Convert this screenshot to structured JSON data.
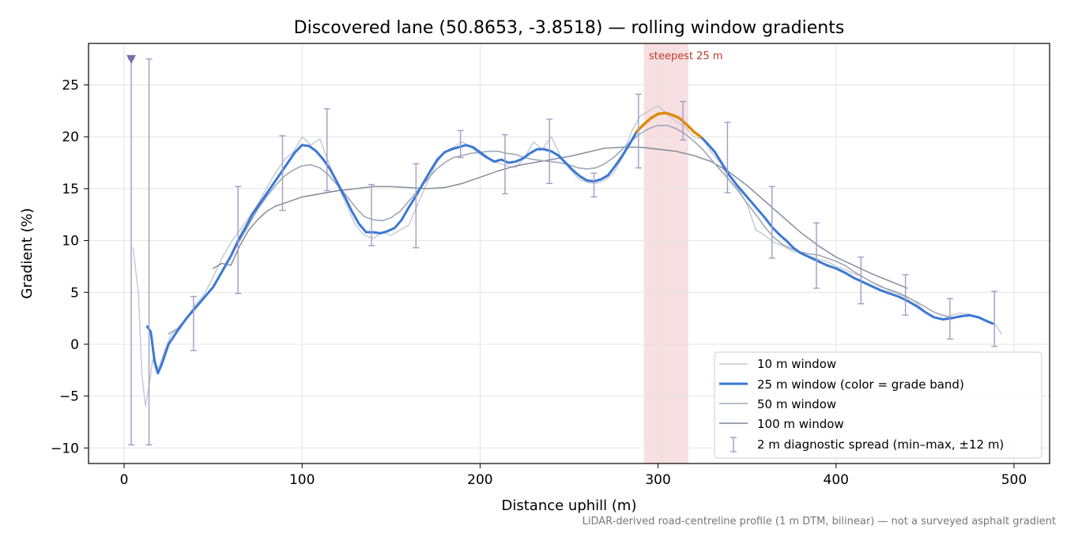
{
  "chart_data": {
    "type": "line",
    "title": "Discovered lane (50.8653, -3.8518) — rolling window gradients",
    "xlabel": "Distance uphill (m)",
    "ylabel": "Gradient (%)",
    "xlim": [
      -20,
      520
    ],
    "ylim": [
      -11.5,
      29
    ],
    "xticks": [
      0,
      100,
      200,
      300,
      400,
      500
    ],
    "yticks": [
      -10,
      -5,
      0,
      5,
      10,
      15,
      20,
      25
    ],
    "grid": true,
    "legend_position": "lower-right",
    "footnote": "LiDAR-derived road-centreline profile (1 m DTM, bilinear) — not a surveyed asphalt gradient",
    "highlight": {
      "label": "steepest 25 m",
      "x_start": 292,
      "x_end": 317,
      "color": "#f2c4c9"
    },
    "marker": {
      "x": 4,
      "y": 27.5,
      "shape": "triangle-down",
      "color": "#7b6ba8"
    },
    "series": [
      {
        "name": "10 m window",
        "color": "#c3c8d2",
        "x": [
          5,
          8,
          10,
          12,
          14,
          16,
          18,
          20,
          23,
          26,
          30,
          35,
          40,
          45,
          50,
          55,
          60,
          65,
          70,
          75,
          80,
          85,
          90,
          95,
          100,
          105,
          110,
          115,
          120,
          125,
          130,
          135,
          140,
          145,
          150,
          155,
          160,
          165,
          170,
          175,
          180,
          185,
          190,
          195,
          200,
          205,
          210,
          215,
          220,
          225,
          230,
          235,
          240,
          245,
          250,
          255,
          260,
          265,
          270,
          275,
          280,
          285,
          290,
          295,
          300,
          305,
          310,
          315,
          320,
          325,
          330,
          335,
          340,
          345,
          350,
          355,
          360,
          365,
          370,
          375,
          380,
          385,
          390,
          395,
          400,
          405,
          410,
          415,
          420,
          425,
          430,
          435,
          440,
          445,
          450,
          455,
          460,
          465,
          470,
          475,
          480,
          485,
          490,
          493
        ],
        "y": [
          9.3,
          5.0,
          -3.0,
          -6.0,
          -4.0,
          -1.5,
          -2.5,
          -2.0,
          -0.5,
          0.8,
          1.5,
          2.5,
          3.8,
          4.8,
          6.5,
          8.3,
          9.8,
          11.0,
          12.2,
          13.5,
          15.0,
          16.5,
          17.8,
          18.5,
          20.0,
          19.2,
          19.8,
          17.5,
          15.3,
          13.4,
          11.5,
          10.5,
          10.2,
          10.8,
          10.5,
          11.0,
          11.5,
          13.5,
          15.5,
          17.3,
          18.5,
          19.0,
          19.5,
          19.0,
          18.3,
          17.8,
          17.5,
          17.2,
          17.0,
          18.0,
          19.5,
          18.8,
          20.0,
          18.2,
          17.0,
          16.0,
          15.6,
          15.5,
          15.8,
          16.5,
          18.0,
          20.5,
          22.0,
          22.5,
          23.0,
          22.2,
          21.5,
          21.0,
          20.0,
          19.8,
          18.5,
          17.5,
          15.8,
          15.0,
          13.5,
          11.0,
          10.5,
          9.8,
          9.5,
          9.0,
          8.8,
          8.5,
          8.2,
          8.0,
          7.5,
          7.2,
          6.8,
          6.5,
          6.0,
          5.5,
          5.3,
          5.0,
          4.6,
          4.0,
          3.2,
          2.6,
          2.4,
          2.8,
          3.0,
          2.9,
          2.5,
          2.3,
          1.8,
          1.0
        ]
      },
      {
        "name": "25 m window (color = grade band)",
        "color": "#3a78d4",
        "x": [
          13,
          15,
          17,
          19,
          21,
          25,
          30,
          35,
          40,
          45,
          50,
          55,
          60,
          64,
          68,
          72,
          76,
          80,
          84,
          88,
          92,
          96,
          100,
          104,
          108,
          112,
          116,
          120,
          124,
          128,
          132,
          136,
          140,
          144,
          148,
          152,
          156,
          160,
          164,
          168,
          172,
          176,
          180,
          184,
          188,
          192,
          196,
          200,
          204,
          208,
          212,
          216,
          220,
          224,
          228,
          232,
          236,
          240,
          244,
          248,
          252,
          256,
          260,
          264,
          268,
          272,
          276,
          280,
          284,
          288,
          292,
          296,
          300,
          304,
          308,
          312,
          316,
          320,
          324,
          328,
          332,
          336,
          340,
          344,
          348,
          352,
          356,
          360,
          364,
          368,
          372,
          376,
          380,
          385,
          390,
          395,
          400,
          405,
          410,
          415,
          420,
          425,
          430,
          435,
          440,
          445,
          450,
          455,
          460,
          465,
          470,
          475,
          480,
          485,
          488
        ],
        "y": [
          1.7,
          1.2,
          -1.5,
          -2.8,
          -2.0,
          0.0,
          1.3,
          2.5,
          3.5,
          4.5,
          5.5,
          7.0,
          8.5,
          10.0,
          11.2,
          12.5,
          13.5,
          14.5,
          15.5,
          16.5,
          17.5,
          18.5,
          19.2,
          19.1,
          18.6,
          17.8,
          16.8,
          15.5,
          14.2,
          12.8,
          11.6,
          10.8,
          10.8,
          10.7,
          10.9,
          11.2,
          12.0,
          13.2,
          14.3,
          15.5,
          16.7,
          17.8,
          18.5,
          18.8,
          19.0,
          19.2,
          19.0,
          18.5,
          18.0,
          17.6,
          17.8,
          17.5,
          17.6,
          17.9,
          18.4,
          18.8,
          18.8,
          18.6,
          18.2,
          17.5,
          16.8,
          16.2,
          15.8,
          15.7,
          15.9,
          16.3,
          17.2,
          18.2,
          19.3,
          20.5,
          21.2,
          21.8,
          22.2,
          22.3,
          22.1,
          21.8,
          21.2,
          20.5,
          20.0,
          19.3,
          18.5,
          17.4,
          16.3,
          15.4,
          14.6,
          13.8,
          13.0,
          12.2,
          11.3,
          10.6,
          10.0,
          9.3,
          8.8,
          8.4,
          8.0,
          7.6,
          7.3,
          6.9,
          6.4,
          6.0,
          5.6,
          5.2,
          4.9,
          4.6,
          4.2,
          3.7,
          3.1,
          2.6,
          2.4,
          2.5,
          2.7,
          2.8,
          2.6,
          2.2,
          2.0
        ]
      },
      {
        "name": "50 m window",
        "color": "#a0a8b6",
        "x": [
          25,
          30,
          35,
          40,
          45,
          50,
          55,
          60,
          65,
          70,
          75,
          80,
          85,
          90,
          95,
          100,
          105,
          110,
          115,
          120,
          125,
          130,
          135,
          140,
          145,
          150,
          155,
          160,
          165,
          170,
          175,
          180,
          185,
          190,
          195,
          200,
          205,
          210,
          215,
          220,
          225,
          230,
          235,
          240,
          245,
          250,
          255,
          260,
          265,
          270,
          275,
          280,
          285,
          290,
          295,
          300,
          305,
          310,
          315,
          320,
          325,
          330,
          335,
          340,
          345,
          350,
          355,
          360,
          365,
          370,
          375,
          380,
          385,
          390,
          395,
          400,
          405,
          410,
          415,
          420,
          425,
          430,
          435,
          440,
          445,
          450,
          455,
          460,
          465,
          470
        ],
        "y": [
          1.0,
          1.5,
          2.5,
          3.5,
          4.5,
          5.5,
          7.0,
          8.5,
          10.0,
          11.5,
          13.0,
          14.2,
          15.3,
          16.2,
          16.8,
          17.2,
          17.3,
          17.0,
          16.3,
          15.3,
          14.3,
          13.2,
          12.3,
          12.0,
          11.9,
          12.2,
          12.8,
          13.8,
          14.8,
          15.8,
          16.8,
          17.5,
          18.0,
          18.2,
          18.4,
          18.5,
          18.6,
          18.6,
          18.4,
          18.3,
          18.0,
          17.8,
          17.7,
          17.6,
          17.5,
          17.3,
          17.0,
          16.9,
          17.0,
          17.4,
          18.0,
          18.8,
          19.6,
          20.3,
          20.8,
          21.1,
          21.1,
          20.8,
          20.3,
          19.6,
          18.8,
          17.8,
          16.8,
          15.8,
          14.8,
          13.6,
          12.5,
          11.3,
          10.3,
          9.6,
          9.2,
          8.9,
          8.7,
          8.6,
          8.3,
          8.0,
          7.6,
          7.0,
          6.5,
          6.0,
          5.6,
          5.2,
          4.9,
          4.5,
          4.1,
          3.6,
          3.1,
          2.8,
          2.6,
          2.6
        ]
      },
      {
        "name": "100 m window",
        "color": "#7e8595",
        "x": [
          50,
          55,
          60,
          65,
          70,
          75,
          80,
          85,
          90,
          95,
          100,
          110,
          120,
          130,
          140,
          150,
          160,
          170,
          180,
          190,
          200,
          210,
          220,
          230,
          240,
          250,
          260,
          270,
          280,
          290,
          300,
          310,
          320,
          330,
          340,
          350,
          360,
          370,
          380,
          390,
          400,
          410,
          420,
          430,
          440
        ],
        "y": [
          7.3,
          7.8,
          7.6,
          9.5,
          11.0,
          12.0,
          12.8,
          13.3,
          13.6,
          13.9,
          14.2,
          14.5,
          14.8,
          15.0,
          15.2,
          15.2,
          15.1,
          15.0,
          15.1,
          15.5,
          16.1,
          16.7,
          17.2,
          17.5,
          17.8,
          18.1,
          18.5,
          18.9,
          19.0,
          19.0,
          18.8,
          18.6,
          18.2,
          17.6,
          16.6,
          15.3,
          13.8,
          12.3,
          10.8,
          9.5,
          8.4,
          7.6,
          6.8,
          6.1,
          5.4
        ]
      }
    ],
    "error_bars": {
      "name": "2 m diagnostic spread (min–max, ±12 m)",
      "color": "#a29cc4",
      "points": [
        {
          "x": 4,
          "low": -9.7,
          "high": 27.5
        },
        {
          "x": 14,
          "low": -9.7,
          "high": 27.5
        },
        {
          "x": 39,
          "low": -0.6,
          "high": 4.6
        },
        {
          "x": 64,
          "low": 4.9,
          "high": 15.2
        },
        {
          "x": 89,
          "low": 12.9,
          "high": 20.1
        },
        {
          "x": 114,
          "low": 14.8,
          "high": 22.7
        },
        {
          "x": 139,
          "low": 9.5,
          "high": 15.4
        },
        {
          "x": 164,
          "low": 9.3,
          "high": 17.4
        },
        {
          "x": 189,
          "low": 18.0,
          "high": 20.6
        },
        {
          "x": 214,
          "low": 14.5,
          "high": 20.2
        },
        {
          "x": 239,
          "low": 15.5,
          "high": 21.7
        },
        {
          "x": 264,
          "low": 14.2,
          "high": 16.5
        },
        {
          "x": 289,
          "low": 17.0,
          "high": 24.1
        },
        {
          "x": 314,
          "low": 19.7,
          "high": 23.4
        },
        {
          "x": 339,
          "low": 14.6,
          "high": 21.4
        },
        {
          "x": 364,
          "low": 8.3,
          "high": 15.2
        },
        {
          "x": 389,
          "low": 5.4,
          "high": 11.7
        },
        {
          "x": 414,
          "low": 3.9,
          "high": 8.4
        },
        {
          "x": 439,
          "low": 2.8,
          "high": 6.7
        },
        {
          "x": 464,
          "low": 0.5,
          "high": 4.4
        },
        {
          "x": 489,
          "low": -0.2,
          "high": 5.1
        }
      ]
    },
    "grade_band_color": "#e08a00",
    "grade_band_x_range": [
      288,
      326
    ]
  }
}
